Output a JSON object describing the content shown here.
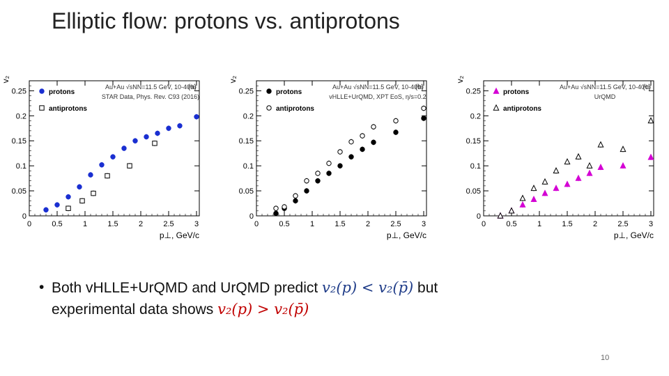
{
  "slide": {
    "title": "Elliptic flow: protons vs. antiprotons",
    "bullet_line1_prefix": "Both vHLLE+UrQMD and UrQMD predict ",
    "bullet_line1_math": "v₂(p) < v₂(p̄)",
    "bullet_line1_suffix": " but",
    "bullet_line2_prefix": "experimental data shows ",
    "bullet_line2_math": "v₂(p) > v₂(p̄)",
    "bullet_symbol": "•",
    "page_number": "10"
  },
  "chart_data": [
    {
      "type": "scatter",
      "panel": "(a)",
      "ylabel": "v₂",
      "xlabel": "p⊥, GeV/c",
      "xlim": [
        0,
        3.05
      ],
      "ylim": [
        0,
        0.27
      ],
      "xticks": [
        "0",
        "0.5",
        "1",
        "1.5",
        "2",
        "2.5",
        "3"
      ],
      "yticks": [
        "0",
        "0.05",
        "0.1",
        "0.15",
        "0.2",
        "0.25"
      ],
      "annotation_lines": [
        "Au+Au √sNN=11.5 GeV, 10-40%",
        "STAR Data, Phys. Rev. C93 (2016)"
      ],
      "series": [
        {
          "name": "protons",
          "marker": "filled-circle",
          "color": "#1a2fd1",
          "x": [
            0.3,
            0.5,
            0.7,
            0.9,
            1.1,
            1.3,
            1.5,
            1.7,
            1.9,
            2.1,
            2.3,
            2.5,
            2.7,
            3.0
          ],
          "y": [
            0.012,
            0.022,
            0.038,
            0.058,
            0.082,
            0.102,
            0.118,
            0.135,
            0.15,
            0.158,
            0.165,
            0.175,
            0.18,
            0.198
          ]
        },
        {
          "name": "antiprotons",
          "marker": "open-square",
          "color": "#000000",
          "x": [
            0.7,
            0.95,
            1.15,
            1.4,
            1.8,
            2.25
          ],
          "y": [
            0.015,
            0.03,
            0.045,
            0.08,
            0.1,
            0.145
          ]
        }
      ]
    },
    {
      "type": "scatter",
      "panel": "(b)",
      "ylabel": "v₂",
      "xlabel": "p⊥, GeV/c",
      "xlim": [
        0,
        3.05
      ],
      "ylim": [
        0,
        0.27
      ],
      "xticks": [
        "0",
        "0.5",
        "1",
        "1.5",
        "2",
        "2.5",
        "3"
      ],
      "yticks": [
        "0",
        "0.05",
        "0.1",
        "0.15",
        "0.2",
        "0.25"
      ],
      "annotation_lines": [
        "Au+Au √sNN=11.5 GeV, 10-40%",
        "vHLLE+UrQMD, XPT EoS, η/s=0.2"
      ],
      "series": [
        {
          "name": "protons",
          "marker": "filled-circle",
          "color": "#000000",
          "x": [
            0.35,
            0.5,
            0.7,
            0.9,
            1.1,
            1.3,
            1.5,
            1.7,
            1.9,
            2.1,
            2.5,
            3.0
          ],
          "y": [
            0.005,
            0.015,
            0.03,
            0.05,
            0.07,
            0.085,
            0.1,
            0.118,
            0.133,
            0.147,
            0.167,
            0.195
          ]
        },
        {
          "name": "antiprotons",
          "marker": "open-circle",
          "color": "#000000",
          "x": [
            0.35,
            0.5,
            0.7,
            0.9,
            1.1,
            1.3,
            1.5,
            1.7,
            1.9,
            2.1,
            2.5,
            3.0
          ],
          "y": [
            0.015,
            0.018,
            0.04,
            0.07,
            0.085,
            0.105,
            0.128,
            0.148,
            0.16,
            0.178,
            0.19,
            0.215
          ]
        }
      ]
    },
    {
      "type": "scatter",
      "panel": "(c)",
      "ylabel": "v₂",
      "xlabel": "p⊥, GeV/c",
      "xlim": [
        0,
        3.05
      ],
      "ylim": [
        0,
        0.27
      ],
      "xticks": [
        "0",
        "0.5",
        "1",
        "1.5",
        "2",
        "2.5",
        "3"
      ],
      "yticks": [
        "0",
        "0.05",
        "0.1",
        "0.15",
        "0.2",
        "0.25"
      ],
      "annotation_lines": [
        "Au+Au √sNN=11.5 GeV, 10-40%",
        "UrQMD"
      ],
      "series": [
        {
          "name": "protons",
          "marker": "filled-triangle",
          "color": "#d400d4",
          "x": [
            0.3,
            0.5,
            0.7,
            0.9,
            1.1,
            1.3,
            1.5,
            1.7,
            1.9,
            2.1,
            2.5,
            3.0
          ],
          "y": [
            0.0,
            0.01,
            0.022,
            0.033,
            0.045,
            0.055,
            0.063,
            0.075,
            0.085,
            0.097,
            0.1,
            0.117
          ]
        },
        {
          "name": "antiprotons",
          "marker": "open-triangle",
          "color": "#000000",
          "x": [
            0.3,
            0.5,
            0.7,
            0.9,
            1.1,
            1.3,
            1.5,
            1.7,
            1.9,
            2.1,
            2.5,
            3.0
          ],
          "y": [
            0.0,
            0.01,
            0.035,
            0.055,
            0.068,
            0.09,
            0.108,
            0.118,
            0.1,
            0.142,
            0.133,
            0.19
          ]
        }
      ]
    }
  ]
}
